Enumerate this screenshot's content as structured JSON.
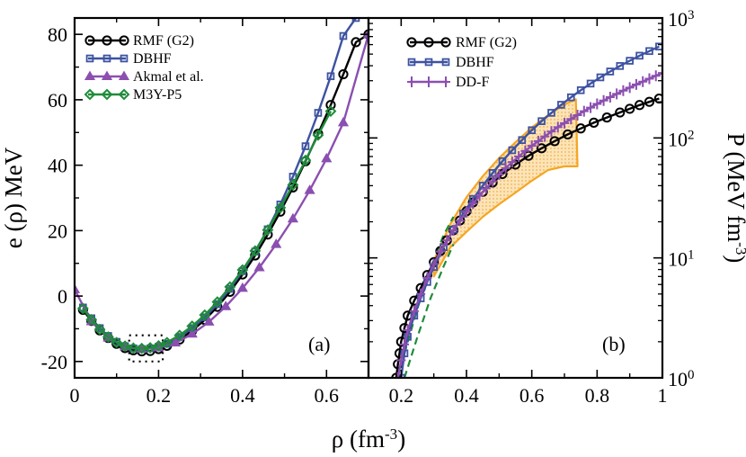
{
  "chart_data": [
    {
      "type": "line",
      "panel_label": "(a)",
      "ylabel": "e (ρ) MeV",
      "xlim": [
        0,
        0.7
      ],
      "ylim": [
        -25,
        85
      ],
      "xticks": [
        {
          "v": 0,
          "t": "0"
        },
        {
          "v": 0.2,
          "t": "0.2"
        },
        {
          "v": 0.4,
          "t": "0.4"
        },
        {
          "v": 0.6,
          "t": "0.6"
        }
      ],
      "yticks": [
        {
          "v": -20,
          "t": "-20"
        },
        {
          "v": 0,
          "t": "0"
        },
        {
          "v": 20,
          "t": "20"
        },
        {
          "v": 40,
          "t": "40"
        },
        {
          "v": 60,
          "t": "60"
        },
        {
          "v": 80,
          "t": "80"
        }
      ],
      "legend": "top-left",
      "saturation_box": {
        "x": [
          0.13,
          0.21
        ],
        "y": [
          -20,
          -12
        ]
      },
      "series": [
        {
          "name": "RMF (G2)",
          "color": "#000000",
          "marker": "circle",
          "x": [
            0.02,
            0.04,
            0.06,
            0.08,
            0.1,
            0.12,
            0.14,
            0.16,
            0.18,
            0.2,
            0.22,
            0.25,
            0.28,
            0.31,
            0.34,
            0.37,
            0.4,
            0.43,
            0.46,
            0.49,
            0.52,
            0.55,
            0.58,
            0.61,
            0.64,
            0.67,
            0.7
          ],
          "y": [
            -4.2,
            -7.6,
            -10.5,
            -12.8,
            -14.6,
            -15.9,
            -16.6,
            -16.9,
            -16.8,
            -16.2,
            -15.2,
            -13.3,
            -10.6,
            -7.3,
            -3.3,
            1.3,
            6.6,
            12.4,
            18.8,
            25.8,
            33.2,
            41.2,
            49.6,
            58.4,
            67.8,
            77.6,
            80.0
          ]
        },
        {
          "name": "DBHF",
          "color": "#3d52a1",
          "marker": "square",
          "x": [
            0.02,
            0.04,
            0.06,
            0.08,
            0.1,
            0.12,
            0.14,
            0.16,
            0.18,
            0.2,
            0.22,
            0.25,
            0.28,
            0.31,
            0.34,
            0.37,
            0.4,
            0.43,
            0.46,
            0.49,
            0.52,
            0.55,
            0.58,
            0.61,
            0.64,
            0.67
          ],
          "y": [
            -3.5,
            -6.8,
            -9.8,
            -12.2,
            -14.0,
            -15.3,
            -16.0,
            -16.2,
            -16.0,
            -15.5,
            -14.6,
            -12.5,
            -9.8,
            -6.5,
            -2.5,
            2.2,
            7.6,
            13.6,
            20.4,
            28.0,
            36.5,
            45.8,
            56.0,
            67.2,
            79.5,
            85.0
          ]
        },
        {
          "name": "Akmal et al.",
          "color": "#8b4fb0",
          "marker": "triangle",
          "x": [
            0.0,
            0.04,
            0.08,
            0.12,
            0.16,
            0.2,
            0.24,
            0.28,
            0.32,
            0.36,
            0.4,
            0.44,
            0.48,
            0.52,
            0.56,
            0.6,
            0.64,
            0.7
          ],
          "y": [
            2.0,
            -7.8,
            -12.8,
            -15.5,
            -16.2,
            -15.8,
            -14.3,
            -11.6,
            -7.9,
            -3.2,
            2.4,
            8.7,
            15.8,
            23.6,
            32.3,
            42.0,
            53.0,
            80.0
          ]
        },
        {
          "name": "M3Y-P5",
          "color": "#1f8c3a",
          "marker": "diamond",
          "x": [
            0.02,
            0.04,
            0.06,
            0.08,
            0.1,
            0.12,
            0.14,
            0.16,
            0.18,
            0.2,
            0.22,
            0.25,
            0.28,
            0.31,
            0.34,
            0.37,
            0.4,
            0.43,
            0.46,
            0.49,
            0.52,
            0.55,
            0.58,
            0.61
          ],
          "y": [
            -3.8,
            -7.2,
            -10.2,
            -12.5,
            -14.2,
            -15.3,
            -15.9,
            -16.0,
            -15.8,
            -15.2,
            -14.2,
            -12.0,
            -9.2,
            -5.8,
            -1.8,
            2.8,
            8.0,
            13.8,
            20.2,
            27.0,
            34.0,
            41.5,
            49.2,
            56.5
          ]
        }
      ]
    },
    {
      "type": "line",
      "panel_label": "(b)",
      "ylabel": "P (MeV fm",
      "ylabel_sup": "-3",
      "ylabel_end": ")",
      "xlim": [
        0.1,
        1.0
      ],
      "yscale": "log",
      "ylim": [
        1,
        1000
      ],
      "xticks": [
        {
          "v": 0.2,
          "t": "0.2"
        },
        {
          "v": 0.4,
          "t": "0.4"
        },
        {
          "v": 0.6,
          "t": "0.6"
        },
        {
          "v": 0.8,
          "t": "0.8"
        },
        {
          "v": 1.0,
          "t": "1"
        }
      ],
      "yticks_base": "10",
      "yticks": [
        {
          "v": 1,
          "e": "0"
        },
        {
          "v": 10,
          "e": "1"
        },
        {
          "v": 100,
          "e": "2"
        },
        {
          "v": 1000,
          "e": "3"
        }
      ],
      "legend": "top-left",
      "flow_band": {
        "color": "#f5a623",
        "upper": {
          "x": [
            0.3,
            0.35,
            0.4,
            0.45,
            0.5,
            0.55,
            0.6,
            0.65,
            0.7,
            0.735
          ],
          "y": [
            9.5,
            19,
            32,
            48,
            68,
            92,
            122,
            155,
            190,
            210
          ]
        },
        "lower": {
          "x": [
            0.3,
            0.35,
            0.4,
            0.45,
            0.5,
            0.55,
            0.6,
            0.65,
            0.7,
            0.74
          ],
          "y": [
            7.0,
            12.2,
            16.5,
            22,
            28,
            35,
            44,
            54,
            58,
            58
          ]
        }
      },
      "kaon_band": {
        "color": "#1f8c3a",
        "upper": {
          "x": [
            0.21,
            0.25,
            0.29,
            0.33,
            0.36
          ],
          "y": [
            1.6,
            3.8,
            8.2,
            15.5,
            22
          ]
        },
        "lower": {
          "x": [
            0.21,
            0.25,
            0.29,
            0.33,
            0.36
          ],
          "y": [
            1.0,
            2.2,
            4.6,
            8.5,
            13
          ]
        }
      },
      "series": [
        {
          "name": "RMF (G2)",
          "color": "#000000",
          "marker": "circle",
          "x": [
            0.185,
            0.19,
            0.195,
            0.2,
            0.21,
            0.22,
            0.24,
            0.26,
            0.28,
            0.3,
            0.32,
            0.34,
            0.36,
            0.38,
            0.4,
            0.42,
            0.45,
            0.48,
            0.51,
            0.55,
            0.59,
            0.63,
            0.67,
            0.71,
            0.75,
            0.79,
            0.83,
            0.87,
            0.9,
            0.93,
            0.96,
            0.99
          ],
          "y": [
            1.0,
            1.3,
            1.6,
            2.0,
            2.6,
            3.3,
            4.4,
            5.6,
            7.2,
            9.2,
            11.4,
            14.0,
            17.0,
            20.5,
            24.5,
            29,
            35.5,
            42.5,
            50,
            60,
            71,
            82,
            94,
            107,
            120,
            134,
            148,
            163,
            175,
            188,
            200,
            213
          ]
        },
        {
          "name": "DBHF",
          "color": "#3d52a1",
          "marker": "square",
          "x": [
            0.2,
            0.21,
            0.22,
            0.24,
            0.26,
            0.28,
            0.3,
            0.33,
            0.36,
            0.39,
            0.42,
            0.45,
            0.48,
            0.51,
            0.54,
            0.57,
            0.6,
            0.63,
            0.66,
            0.69,
            0.72,
            0.75,
            0.78,
            0.81,
            0.84,
            0.87,
            0.9,
            0.93,
            0.96,
            0.99
          ],
          "y": [
            1.0,
            1.6,
            2.2,
            3.3,
            4.6,
            6.3,
            8.4,
            12.3,
            17.2,
            23.4,
            31,
            40,
            51,
            64,
            79,
            96,
            116,
            138,
            162,
            189,
            218,
            250,
            284,
            320,
            358,
            398,
            440,
            485,
            530,
            578
          ]
        },
        {
          "name": "DD-F",
          "color": "#8b4fb0",
          "marker": "plus",
          "x": [
            0.19,
            0.2,
            0.21,
            0.22,
            0.24,
            0.26,
            0.28,
            0.3,
            0.32,
            0.34,
            0.36,
            0.38,
            0.4,
            0.42,
            0.44,
            0.46,
            0.48,
            0.5,
            0.52,
            0.54,
            0.56,
            0.58,
            0.6,
            0.62,
            0.64,
            0.66,
            0.68,
            0.7,
            0.72,
            0.74,
            0.76,
            0.78,
            0.8,
            0.82,
            0.84,
            0.86,
            0.88,
            0.9,
            0.92,
            0.94,
            0.96,
            0.98,
            1.0
          ],
          "y": [
            1.0,
            1.4,
            1.9,
            2.5,
            3.6,
            5.0,
            6.8,
            8.9,
            11.3,
            14.0,
            17.0,
            20.4,
            24.2,
            28.4,
            33,
            38,
            43.5,
            49.5,
            56,
            63,
            70,
            78,
            86,
            94,
            103,
            113,
            123,
            133,
            144,
            155,
            167,
            179,
            192,
            205,
            219,
            233,
            248,
            263,
            279,
            295,
            312,
            330,
            348
          ]
        }
      ]
    }
  ],
  "shared_xlabel": "ρ (fm",
  "shared_xlabel_sup": "-3",
  "shared_xlabel_end": ")"
}
